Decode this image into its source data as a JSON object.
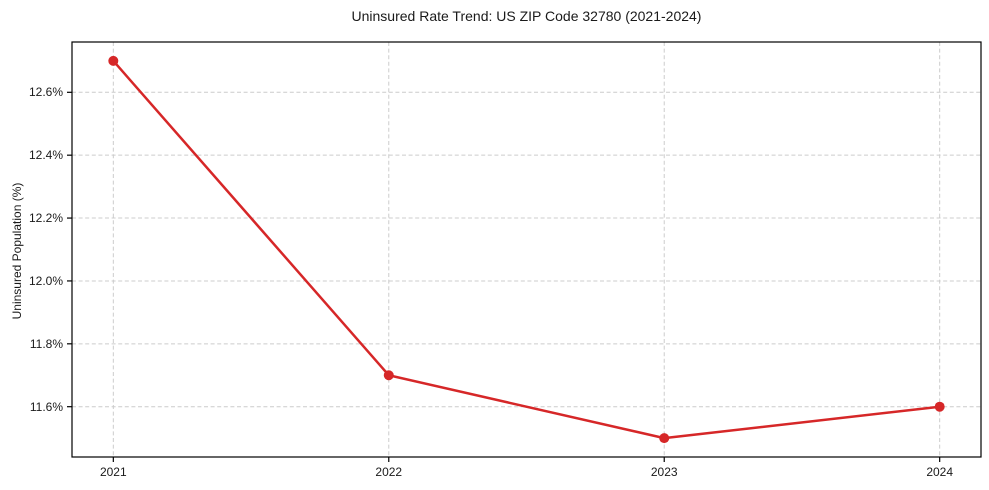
{
  "chart_data": {
    "type": "line",
    "title": "Uninsured Rate Trend: US ZIP Code 32780 (2021-2024)",
    "xlabel": "",
    "ylabel": "Uninsured Population (%)",
    "x": [
      2021,
      2022,
      2023,
      2024
    ],
    "values": [
      12.7,
      11.7,
      11.5,
      11.6
    ],
    "xtick_labels": [
      "2021",
      "2022",
      "2023",
      "2024"
    ],
    "xticks": [
      2021,
      2022,
      2023,
      2024
    ],
    "yticks": [
      11.6,
      11.8,
      12.0,
      12.2,
      12.4,
      12.6
    ],
    "ytick_labels": [
      "11.6%",
      "11.8%",
      "12.0%",
      "12.2%",
      "12.4%",
      "12.6%"
    ],
    "xlim": [
      2020.85,
      2024.15
    ],
    "ylim": [
      11.44,
      12.76
    ],
    "grid": true,
    "grid_style": "dashed",
    "legend": "none",
    "colors": {
      "line": "#d62728",
      "marker": "#d62728",
      "grid": "#cccccc",
      "spine": "#000000",
      "text": "#1a1a1a",
      "background": "#ffffff"
    }
  }
}
